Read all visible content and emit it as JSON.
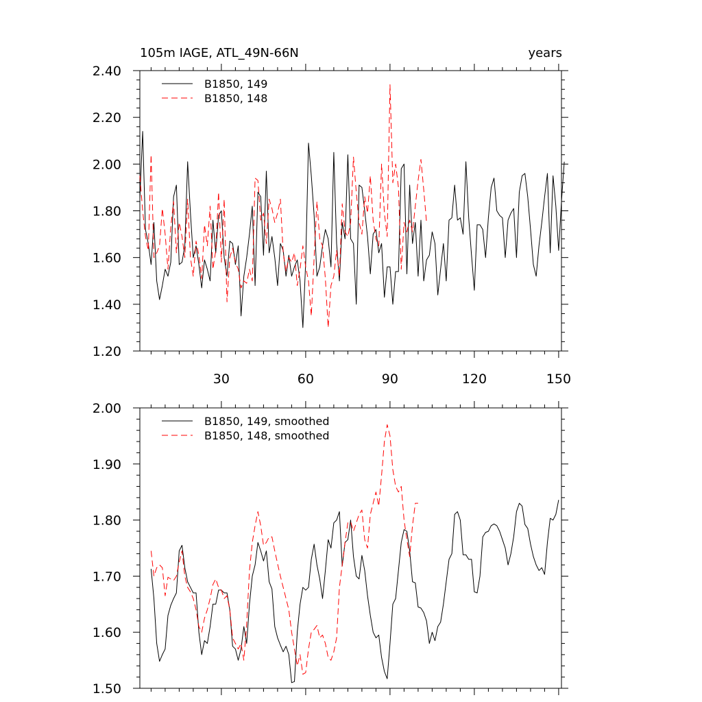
{
  "chart_data": [
    {
      "type": "line",
      "title": "105m IAGE, ATL_49N-66N",
      "title_right": "years",
      "xlim": [
        1,
        151
      ],
      "ylim": [
        1.2,
        2.4
      ],
      "xticks": [
        30,
        60,
        90,
        120,
        150
      ],
      "xtick_labels": [
        "30",
        "60",
        "90",
        "120",
        "150"
      ],
      "yticks": [
        1.2,
        1.4,
        1.6,
        1.8,
        2.0,
        2.2,
        2.4
      ],
      "ytick_labels": [
        "1.20",
        "1.40",
        "1.60",
        "1.80",
        "2.00",
        "2.20",
        "2.40"
      ],
      "legend_position": "top-left",
      "series": [
        {
          "name": "B1850, 149",
          "color": "#000000",
          "dash": "solid",
          "x_start": 1,
          "values": [
            1.85,
            2.14,
            1.72,
            1.66,
            1.57,
            1.75,
            1.5,
            1.42,
            1.48,
            1.55,
            1.52,
            1.58,
            1.86,
            1.91,
            1.57,
            1.58,
            1.65,
            2.01,
            1.79,
            1.6,
            1.65,
            1.57,
            1.47,
            1.59,
            1.55,
            1.5,
            1.76,
            1.62,
            1.78,
            1.8,
            1.6,
            1.52,
            1.67,
            1.66,
            1.57,
            1.65,
            1.35,
            1.52,
            1.6,
            1.7,
            1.82,
            1.48,
            1.88,
            1.86,
            1.61,
            1.97,
            1.62,
            1.69,
            1.6,
            1.48,
            1.66,
            1.63,
            1.52,
            1.61,
            1.52,
            1.56,
            1.59,
            1.5,
            1.3,
            1.58,
            2.09,
            1.95,
            1.78,
            1.52,
            1.56,
            1.65,
            1.72,
            1.68,
            1.56,
            2.05,
            1.66,
            1.5,
            1.75,
            1.68,
            2.04,
            1.68,
            1.66,
            1.4,
            1.91,
            1.9,
            1.8,
            1.69,
            1.53,
            1.7,
            1.72,
            1.62,
            1.66,
            1.43,
            1.56,
            1.56,
            1.4,
            1.54,
            1.54,
            1.98,
            2.0,
            1.53,
            1.91,
            1.66,
            1.75,
            1.52,
            1.76,
            1.5,
            1.59,
            1.61,
            1.71,
            1.66,
            1.44,
            1.55,
            1.66,
            1.5,
            1.76,
            1.77,
            1.91,
            1.76,
            1.77,
            1.7,
            2.01,
            1.77,
            1.61,
            1.46,
            1.74,
            1.74,
            1.72,
            1.6,
            1.77,
            1.9,
            1.94,
            1.8,
            1.78,
            1.77,
            1.6,
            1.76,
            1.79,
            1.81,
            1.6,
            1.88,
            1.95,
            1.96,
            1.86,
            1.72,
            1.57,
            1.52,
            1.65,
            1.75,
            1.86,
            1.96,
            1.62,
            1.95,
            1.82,
            1.63,
            1.84,
            2.01
          ]
        },
        {
          "name": "B1850, 148",
          "color": "#ff0000",
          "dash": "dashed",
          "x_start": 1,
          "values": [
            1.95,
            1.8,
            1.69,
            1.63,
            2.04,
            1.6,
            1.62,
            1.65,
            1.81,
            1.7,
            1.55,
            1.73,
            1.84,
            1.62,
            1.75,
            1.69,
            1.6,
            1.85,
            1.6,
            1.52,
            1.67,
            1.61,
            1.51,
            1.74,
            1.65,
            1.82,
            1.55,
            1.63,
            1.88,
            1.58,
            1.85,
            1.41,
            1.6,
            1.64,
            1.58,
            1.55,
            1.47,
            1.5,
            1.49,
            1.55,
            1.5,
            1.94,
            1.93,
            1.76,
            1.79,
            1.66,
            1.85,
            1.81,
            1.75,
            1.79,
            1.85,
            1.62,
            1.54,
            1.6,
            1.58,
            1.62,
            1.48,
            1.55,
            1.65,
            1.56,
            1.5,
            1.35,
            1.6,
            1.84,
            1.68,
            1.65,
            1.51,
            1.3,
            1.48,
            1.52,
            1.63,
            1.52,
            1.83,
            1.71,
            1.69,
            1.75,
            2.03,
            1.88,
            1.75,
            1.7,
            1.86,
            1.79,
            1.95,
            1.76,
            1.68,
            1.65,
            2.0,
            1.79,
            1.69,
            2.34,
            1.92,
            2.0,
            1.9,
            1.55,
            1.75,
            1.71,
            1.76,
            1.71,
            1.82,
            1.93,
            2.02,
            1.89,
            1.75
          ]
        }
      ]
    },
    {
      "type": "line",
      "title": "",
      "xlim": [
        1,
        151
      ],
      "ylim": [
        1.5,
        2.0
      ],
      "xticks": [
        30,
        60,
        90,
        120,
        150
      ],
      "yticks": [
        1.5,
        1.6,
        1.7,
        1.8,
        1.9,
        2.0
      ],
      "ytick_labels": [
        "1.50",
        "1.60",
        "1.70",
        "1.80",
        "1.90",
        "2.00"
      ],
      "legend_position": "top-left",
      "series": [
        {
          "name": "B1850, 149, smoothed",
          "color": "#000000",
          "dash": "solid",
          "x_start": 5,
          "values": [
            1.713,
            1.66,
            1.58,
            1.548,
            1.56,
            1.57,
            1.63,
            1.648,
            1.66,
            1.67,
            1.745,
            1.755,
            1.715,
            1.69,
            1.68,
            1.67,
            1.67,
            1.6,
            1.56,
            1.585,
            1.58,
            1.61,
            1.65,
            1.65,
            1.675,
            1.675,
            1.67,
            1.67,
            1.64,
            1.575,
            1.57,
            1.55,
            1.57,
            1.61,
            1.58,
            1.65,
            1.7,
            1.72,
            1.76,
            1.745,
            1.727,
            1.745,
            1.69,
            1.677,
            1.61,
            1.59,
            1.577,
            1.565,
            1.575,
            1.56,
            1.51,
            1.512,
            1.6,
            1.65,
            1.68,
            1.675,
            1.68,
            1.73,
            1.757,
            1.72,
            1.695,
            1.66,
            1.71,
            1.765,
            1.75,
            1.795,
            1.8,
            1.815,
            1.718,
            1.76,
            1.765,
            1.8,
            1.735,
            1.7,
            1.695,
            1.737,
            1.71,
            1.665,
            1.63,
            1.6,
            1.59,
            1.595,
            1.555,
            1.53,
            1.517,
            1.58,
            1.65,
            1.66,
            1.71,
            1.76,
            1.783,
            1.78,
            1.745,
            1.69,
            1.688,
            1.645,
            1.643,
            1.635,
            1.62,
            1.58,
            1.6,
            1.585,
            1.61,
            1.618,
            1.65,
            1.69,
            1.73,
            1.74,
            1.81,
            1.815,
            1.8,
            1.738,
            1.738,
            1.73,
            1.73,
            1.672,
            1.67,
            1.7,
            1.77,
            1.778,
            1.78,
            1.79,
            1.793,
            1.79,
            1.78,
            1.765,
            1.75,
            1.72,
            1.74,
            1.77,
            1.815,
            1.83,
            1.825,
            1.792,
            1.785,
            1.757,
            1.735,
            1.72,
            1.71,
            1.715,
            1.703,
            1.76,
            1.803,
            1.8,
            1.81,
            1.836
          ]
        },
        {
          "name": "B1850, 148, smoothed",
          "color": "#ff0000",
          "dash": "dashed",
          "x_start": 5,
          "values": [
            1.745,
            1.7,
            1.715,
            1.72,
            1.715,
            1.665,
            1.698,
            1.695,
            1.692,
            1.7,
            1.725,
            1.745,
            1.7,
            1.68,
            1.672,
            1.66,
            1.64,
            1.61,
            1.6,
            1.625,
            1.64,
            1.66,
            1.685,
            1.695,
            1.68,
            1.675,
            1.66,
            1.665,
            1.64,
            1.59,
            1.58,
            1.57,
            1.58,
            1.55,
            1.615,
            1.71,
            1.76,
            1.79,
            1.815,
            1.79,
            1.755,
            1.76,
            1.77,
            1.77,
            1.745,
            1.722,
            1.7,
            1.68,
            1.66,
            1.64,
            1.6,
            1.57,
            1.54,
            1.56,
            1.525,
            1.528,
            1.57,
            1.6,
            1.605,
            1.612,
            1.59,
            1.595,
            1.58,
            1.555,
            1.55,
            1.565,
            1.59,
            1.68,
            1.72,
            1.76,
            1.795,
            1.797,
            1.78,
            1.795,
            1.81,
            1.818,
            1.765,
            1.75,
            1.81,
            1.83,
            1.85,
            1.825,
            1.88,
            1.94,
            1.97,
            1.95,
            1.89,
            1.86,
            1.85,
            1.86,
            1.8,
            1.765,
            1.735,
            1.79,
            1.83,
            1.83
          ]
        }
      ]
    }
  ]
}
